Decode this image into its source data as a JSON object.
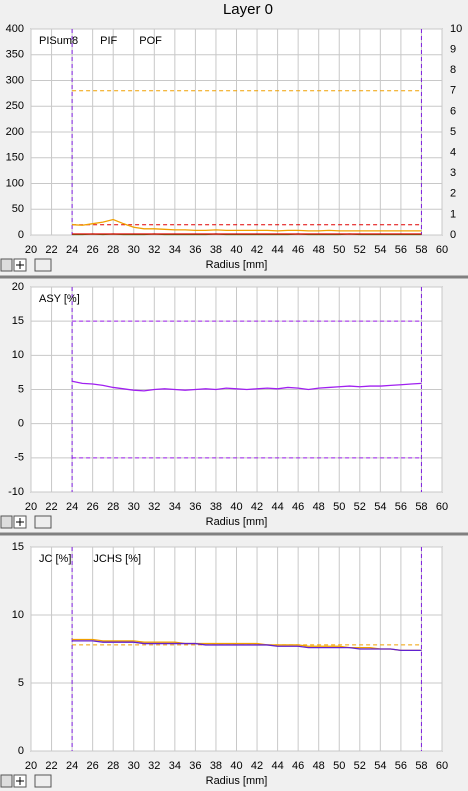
{
  "title": "Layer 0",
  "chart_data": [
    {
      "type": "line",
      "x_label": "Radius [mm]",
      "x": [
        24,
        25,
        26,
        27,
        28,
        29,
        30,
        31,
        32,
        33,
        34,
        35,
        36,
        37,
        38,
        39,
        40,
        41,
        42,
        43,
        44,
        45,
        46,
        47,
        48,
        49,
        50,
        51,
        52,
        53,
        54,
        55,
        56,
        57,
        58
      ],
      "xlim": [
        20,
        60
      ],
      "xticks": [
        20,
        22,
        24,
        26,
        28,
        30,
        32,
        34,
        36,
        38,
        40,
        42,
        44,
        46,
        48,
        50,
        52,
        54,
        56,
        58,
        60
      ],
      "ylim": [
        0,
        400
      ],
      "yticks": [
        0,
        50,
        100,
        150,
        200,
        250,
        300,
        350,
        400
      ],
      "y2lim": [
        0,
        10
      ],
      "y2ticks": [
        0,
        1,
        2,
        3,
        4,
        5,
        6,
        7,
        8,
        9,
        10
      ],
      "grid": true,
      "vlines": [
        24,
        58
      ],
      "hlines": [
        {
          "y": 280,
          "color": "#f0a000"
        },
        {
          "y": 20,
          "color": "#e00000"
        }
      ],
      "series": [
        {
          "name": "PISum8",
          "color": "#f0a000",
          "values": [
            20,
            19,
            22,
            25,
            30,
            22,
            15,
            12,
            12,
            11,
            10,
            10,
            9,
            9,
            10,
            9,
            9,
            9,
            9,
            9,
            8,
            9,
            9,
            8,
            8,
            9,
            8,
            8,
            8,
            8,
            8,
            8,
            8,
            8,
            8
          ]
        },
        {
          "name": "PIF",
          "color": "#20a020",
          "values": [
            1,
            1,
            2,
            1,
            2,
            1,
            1,
            1,
            2,
            1,
            1,
            1,
            1,
            1,
            2,
            1,
            1,
            1,
            1,
            1,
            1,
            1,
            2,
            1,
            1,
            1,
            1,
            2,
            1,
            1,
            1,
            1,
            1,
            1,
            1
          ]
        },
        {
          "name": "POF",
          "color": "#e00000",
          "axis": "y2",
          "values": [
            0.05,
            0.05,
            0.05,
            0.05,
            0.05,
            0.05,
            0.05,
            0.05,
            0.05,
            0.05,
            0.05,
            0.05,
            0.05,
            0.05,
            0.05,
            0.05,
            0.05,
            0.05,
            0.05,
            0.05,
            0.05,
            0.05,
            0.05,
            0.05,
            0.05,
            0.05,
            0.05,
            0.05,
            0.05,
            0.05,
            0.05,
            0.05,
            0.05,
            0.05,
            0.05
          ]
        }
      ]
    },
    {
      "type": "line",
      "x_label": "Radius [mm]",
      "x": [
        24,
        25,
        26,
        27,
        28,
        29,
        30,
        31,
        32,
        33,
        34,
        35,
        36,
        37,
        38,
        39,
        40,
        41,
        42,
        43,
        44,
        45,
        46,
        47,
        48,
        49,
        50,
        51,
        52,
        53,
        54,
        55,
        56,
        57,
        58
      ],
      "xlim": [
        20,
        60
      ],
      "xticks": [
        20,
        22,
        24,
        26,
        28,
        30,
        32,
        34,
        36,
        38,
        40,
        42,
        44,
        46,
        48,
        50,
        52,
        54,
        56,
        58,
        60
      ],
      "ylim": [
        -10,
        20
      ],
      "yticks": [
        -10,
        -5,
        0,
        5,
        10,
        15,
        20
      ],
      "grid": true,
      "vlines": [
        24,
        58
      ],
      "hlines": [
        {
          "y": 15,
          "color": "#a020f0"
        },
        {
          "y": -5,
          "color": "#a020f0"
        }
      ],
      "series": [
        {
          "name": "ASY [%]",
          "color": "#a020f0",
          "values": [
            6.2,
            5.9,
            5.8,
            5.6,
            5.3,
            5.1,
            4.9,
            4.8,
            5.0,
            5.1,
            5.0,
            4.9,
            5.0,
            5.1,
            5.0,
            5.2,
            5.1,
            5.0,
            5.1,
            5.2,
            5.1,
            5.3,
            5.2,
            5.0,
            5.2,
            5.3,
            5.4,
            5.5,
            5.4,
            5.5,
            5.5,
            5.6,
            5.7,
            5.8,
            5.9
          ]
        }
      ]
    },
    {
      "type": "line",
      "x_label": "Radius [mm]",
      "x": [
        24,
        25,
        26,
        27,
        28,
        29,
        30,
        31,
        32,
        33,
        34,
        35,
        36,
        37,
        38,
        39,
        40,
        41,
        42,
        43,
        44,
        45,
        46,
        47,
        48,
        49,
        50,
        51,
        52,
        53,
        54,
        55,
        56,
        57,
        58
      ],
      "xlim": [
        20,
        60
      ],
      "xticks": [
        20,
        22,
        24,
        26,
        28,
        30,
        32,
        34,
        36,
        38,
        40,
        42,
        44,
        46,
        48,
        50,
        52,
        54,
        56,
        58,
        60
      ],
      "ylim": [
        0,
        15
      ],
      "yticks": [
        0,
        5,
        10,
        15
      ],
      "grid": true,
      "vlines": [
        24,
        58
      ],
      "hlines": [
        {
          "y": 7.8,
          "color": "#f0a000"
        }
      ],
      "series": [
        {
          "name": "JC [%]",
          "color": "#f0a000",
          "values": [
            8.2,
            8.2,
            8.2,
            8.1,
            8.1,
            8.1,
            8.1,
            8.0,
            8.0,
            8.0,
            8.0,
            7.9,
            7.9,
            7.9,
            7.9,
            7.9,
            7.9,
            7.9,
            7.9,
            7.8,
            7.8,
            7.8,
            7.8,
            7.7,
            7.7,
            7.7,
            7.7,
            7.6,
            7.6,
            7.6,
            7.5,
            7.5,
            7.4,
            7.4,
            7.4
          ]
        },
        {
          "name": "JCHS [%]",
          "color": "#6020d0",
          "values": [
            8.1,
            8.1,
            8.1,
            8.0,
            8.0,
            8.0,
            8.0,
            7.9,
            7.9,
            7.9,
            7.9,
            7.9,
            7.9,
            7.8,
            7.8,
            7.8,
            7.8,
            7.8,
            7.8,
            7.8,
            7.7,
            7.7,
            7.7,
            7.6,
            7.6,
            7.6,
            7.6,
            7.6,
            7.5,
            7.5,
            7.5,
            7.5,
            7.4,
            7.4,
            7.4
          ]
        }
      ]
    }
  ]
}
